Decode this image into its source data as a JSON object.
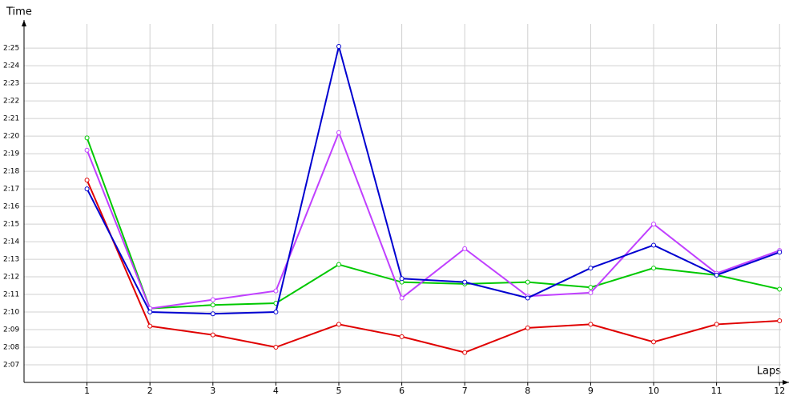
{
  "chart_data": {
    "type": "line",
    "y_label": "Time",
    "x_label": "Laps",
    "x": [
      1,
      2,
      3,
      4,
      5,
      6,
      7,
      8,
      9,
      10,
      11,
      12
    ],
    "xlim": [
      0,
      12.15
    ],
    "xticks": [
      1,
      2,
      3,
      4,
      5,
      6,
      7,
      8,
      9,
      10,
      11,
      12
    ],
    "ylim": [
      126,
      146.6
    ],
    "yticks": [
      {
        "value": 127,
        "label": "2:07"
      },
      {
        "value": 128,
        "label": "2:08"
      },
      {
        "value": 129,
        "label": "2:09"
      },
      {
        "value": 130,
        "label": "2:10"
      },
      {
        "value": 131,
        "label": "2:11"
      },
      {
        "value": 132,
        "label": "2:12"
      },
      {
        "value": 133,
        "label": "2:13"
      },
      {
        "value": 134,
        "label": "2:14"
      },
      {
        "value": 135,
        "label": "2:15"
      },
      {
        "value": 136,
        "label": "2:16"
      },
      {
        "value": 137,
        "label": "2:17"
      },
      {
        "value": 138,
        "label": "2:18"
      },
      {
        "value": 139,
        "label": "2:19"
      },
      {
        "value": 140,
        "label": "2:20"
      },
      {
        "value": 141,
        "label": "2:21"
      },
      {
        "value": 142,
        "label": "2:22"
      },
      {
        "value": 143,
        "label": "2:23"
      },
      {
        "value": 144,
        "label": "2:24"
      },
      {
        "value": 145,
        "label": "2:25"
      }
    ],
    "grid": true,
    "series": [
      {
        "color": "#00c800",
        "values": [
          139.9,
          130.2,
          130.4,
          130.5,
          132.7,
          131.7,
          131.6,
          131.7,
          131.4,
          132.5,
          132.1,
          131.3
        ]
      },
      {
        "color": "#e00000",
        "values": [
          137.5,
          129.2,
          128.7,
          128.0,
          129.3,
          128.6,
          127.7,
          129.1,
          129.3,
          128.3,
          129.3,
          129.5
        ]
      },
      {
        "color": "#c040ff",
        "values": [
          139.2,
          130.2,
          130.7,
          131.2,
          140.2,
          130.8,
          133.6,
          130.9,
          131.1,
          135.0,
          132.2,
          133.5
        ]
      },
      {
        "color": "#0000d0",
        "values": [
          137.0,
          130.0,
          129.9,
          130.0,
          145.1,
          131.9,
          131.7,
          130.8,
          132.5,
          133.8,
          132.1,
          133.4
        ]
      }
    ]
  }
}
